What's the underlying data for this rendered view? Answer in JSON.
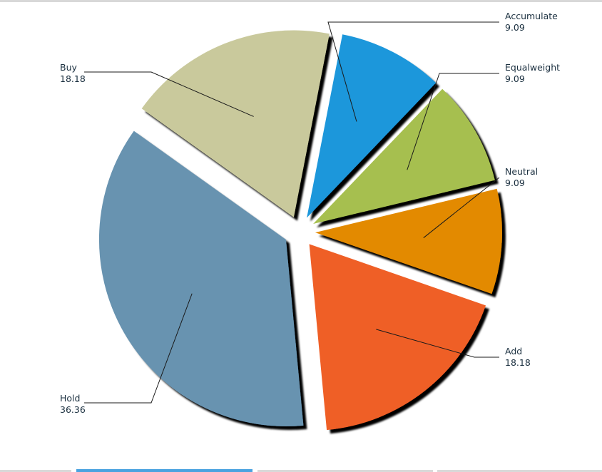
{
  "chart_data": {
    "type": "pie",
    "exploded": true,
    "shadow": true,
    "slices": [
      {
        "label": "Accumulate",
        "value": 9.09,
        "color": "#1f97db"
      },
      {
        "label": "Equalweight",
        "value": 9.09,
        "color": "#a6bf50"
      },
      {
        "label": "Neutral",
        "value": 9.09,
        "color": "#e38a00"
      },
      {
        "label": "Add",
        "value": 18.18,
        "color": "#ef5e28"
      },
      {
        "label": "Hold",
        "value": 36.36,
        "color": "#6893b0"
      },
      {
        "label": "Buy",
        "value": 18.18,
        "color": "#c9c99c"
      }
    ]
  },
  "tabs": [
    {
      "active": false
    },
    {
      "active": true
    },
    {
      "active": false
    },
    {
      "active": false
    }
  ]
}
